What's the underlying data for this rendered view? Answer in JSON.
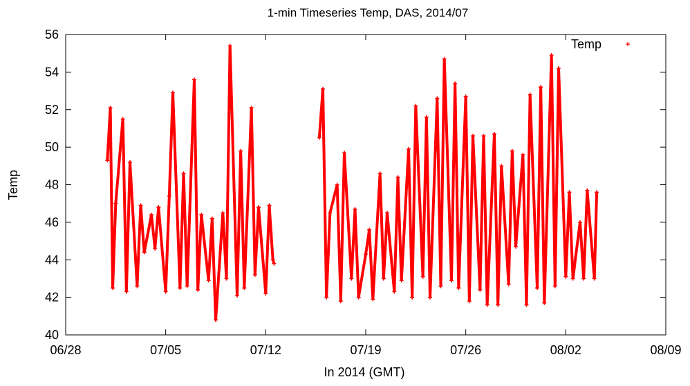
{
  "chart_data": {
    "type": "scatter",
    "title": "1-min Timeseries Temp, DAS, 2014/07",
    "xlabel": "In 2014 (GMT)",
    "ylabel": "Temp",
    "x_ticks": [
      "06/28",
      "07/05",
      "07/12",
      "07/19",
      "07/26",
      "08/02",
      "08/09"
    ],
    "y_ticks": [
      40,
      42,
      44,
      46,
      48,
      50,
      52,
      54,
      56
    ],
    "xlim": [
      "2014-06-28",
      "2014-08-09"
    ],
    "ylim": [
      40,
      56
    ],
    "grid": false,
    "legend_position": "top-right",
    "marker": "+",
    "color": "#ff0000",
    "series": [
      {
        "name": "Temp",
        "x": [
          "2014-06-30 22:00",
          "2014-07-01 03:00",
          "2014-07-01 07:00",
          "2014-07-01 12:00",
          "2014-07-02 00:00",
          "2014-07-02 06:00",
          "2014-07-02 12:00",
          "2014-07-03 00:00",
          "2014-07-03 06:00",
          "2014-07-03 12:00",
          "2014-07-04 00:00",
          "2014-07-04 06:00",
          "2014-07-04 12:00",
          "2014-07-05 00:00",
          "2014-07-05 06:00",
          "2014-07-05 12:00",
          "2014-07-06 00:00",
          "2014-07-06 06:00",
          "2014-07-06 12:00",
          "2014-07-07 00:00",
          "2014-07-07 06:00",
          "2014-07-07 12:00",
          "2014-07-08 00:00",
          "2014-07-08 06:00",
          "2014-07-08 12:00",
          "2014-07-09 00:00",
          "2014-07-09 06:00",
          "2014-07-09 12:00",
          "2014-07-10 00:00",
          "2014-07-10 06:00",
          "2014-07-10 12:00",
          "2014-07-11 00:00",
          "2014-07-11 06:00",
          "2014-07-11 12:00",
          "2014-07-12 00:00",
          "2014-07-12 06:00",
          "2014-07-12 12:00",
          "2014-07-12 14:00",
          "2014-07-15 18:00",
          "2014-07-16 00:00",
          "2014-07-16 06:00",
          "2014-07-16 12:00",
          "2014-07-17 00:00",
          "2014-07-17 06:00",
          "2014-07-17 12:00",
          "2014-07-18 00:00",
          "2014-07-18 06:00",
          "2014-07-18 12:00",
          "2014-07-19 00:00",
          "2014-07-19 06:00",
          "2014-07-19 12:00",
          "2014-07-20 00:00",
          "2014-07-20 06:00",
          "2014-07-20 12:00",
          "2014-07-21 00:00",
          "2014-07-21 06:00",
          "2014-07-21 12:00",
          "2014-07-22 00:00",
          "2014-07-22 06:00",
          "2014-07-22 12:00",
          "2014-07-23 00:00",
          "2014-07-23 06:00",
          "2014-07-23 12:00",
          "2014-07-24 00:00",
          "2014-07-24 06:00",
          "2014-07-24 12:00",
          "2014-07-25 00:00",
          "2014-07-25 06:00",
          "2014-07-25 12:00",
          "2014-07-26 00:00",
          "2014-07-26 06:00",
          "2014-07-26 12:00",
          "2014-07-27 00:00",
          "2014-07-27 06:00",
          "2014-07-27 12:00",
          "2014-07-28 00:00",
          "2014-07-28 06:00",
          "2014-07-28 12:00",
          "2014-07-29 00:00",
          "2014-07-29 06:00",
          "2014-07-29 12:00",
          "2014-07-30 00:00",
          "2014-07-30 06:00",
          "2014-07-30 12:00",
          "2014-07-31 00:00",
          "2014-07-31 06:00",
          "2014-07-31 12:00",
          "2014-08-01 00:00",
          "2014-08-01 06:00",
          "2014-08-01 12:00",
          "2014-08-02 00:00",
          "2014-08-02 06:00",
          "2014-08-02 12:00",
          "2014-08-03 00:00",
          "2014-08-03 06:00",
          "2014-08-03 12:00",
          "2014-08-04 00:00",
          "2014-08-04 04:00"
        ],
        "values": [
          49.3,
          52.1,
          42.5,
          47.0,
          51.5,
          42.3,
          49.2,
          42.6,
          46.9,
          44.4,
          46.4,
          44.6,
          46.8,
          42.3,
          47.4,
          52.9,
          42.5,
          48.6,
          42.6,
          53.6,
          42.4,
          46.4,
          42.9,
          46.2,
          40.8,
          46.5,
          43.0,
          55.4,
          42.1,
          49.8,
          42.5,
          52.1,
          43.2,
          46.8,
          42.2,
          46.9,
          44.0,
          43.8,
          50.5,
          53.1,
          42.0,
          46.5,
          48.0,
          41.8,
          49.7,
          43.0,
          46.7,
          42.0,
          44.3,
          45.6,
          41.9,
          48.6,
          43.0,
          46.5,
          42.3,
          48.4,
          42.9,
          49.9,
          42.0,
          52.2,
          43.1,
          51.6,
          42.0,
          52.6,
          42.6,
          54.7,
          42.9,
          53.4,
          42.5,
          52.7,
          41.8,
          50.6,
          42.4,
          50.6,
          41.6,
          50.7,
          41.6,
          49.0,
          42.7,
          49.8,
          44.7,
          49.6,
          41.6,
          52.8,
          42.5,
          53.2,
          41.7,
          54.9,
          42.6,
          54.2,
          43.1,
          47.6,
          43.0,
          46.0,
          43.0,
          47.7,
          43.0,
          47.6
        ]
      }
    ]
  }
}
